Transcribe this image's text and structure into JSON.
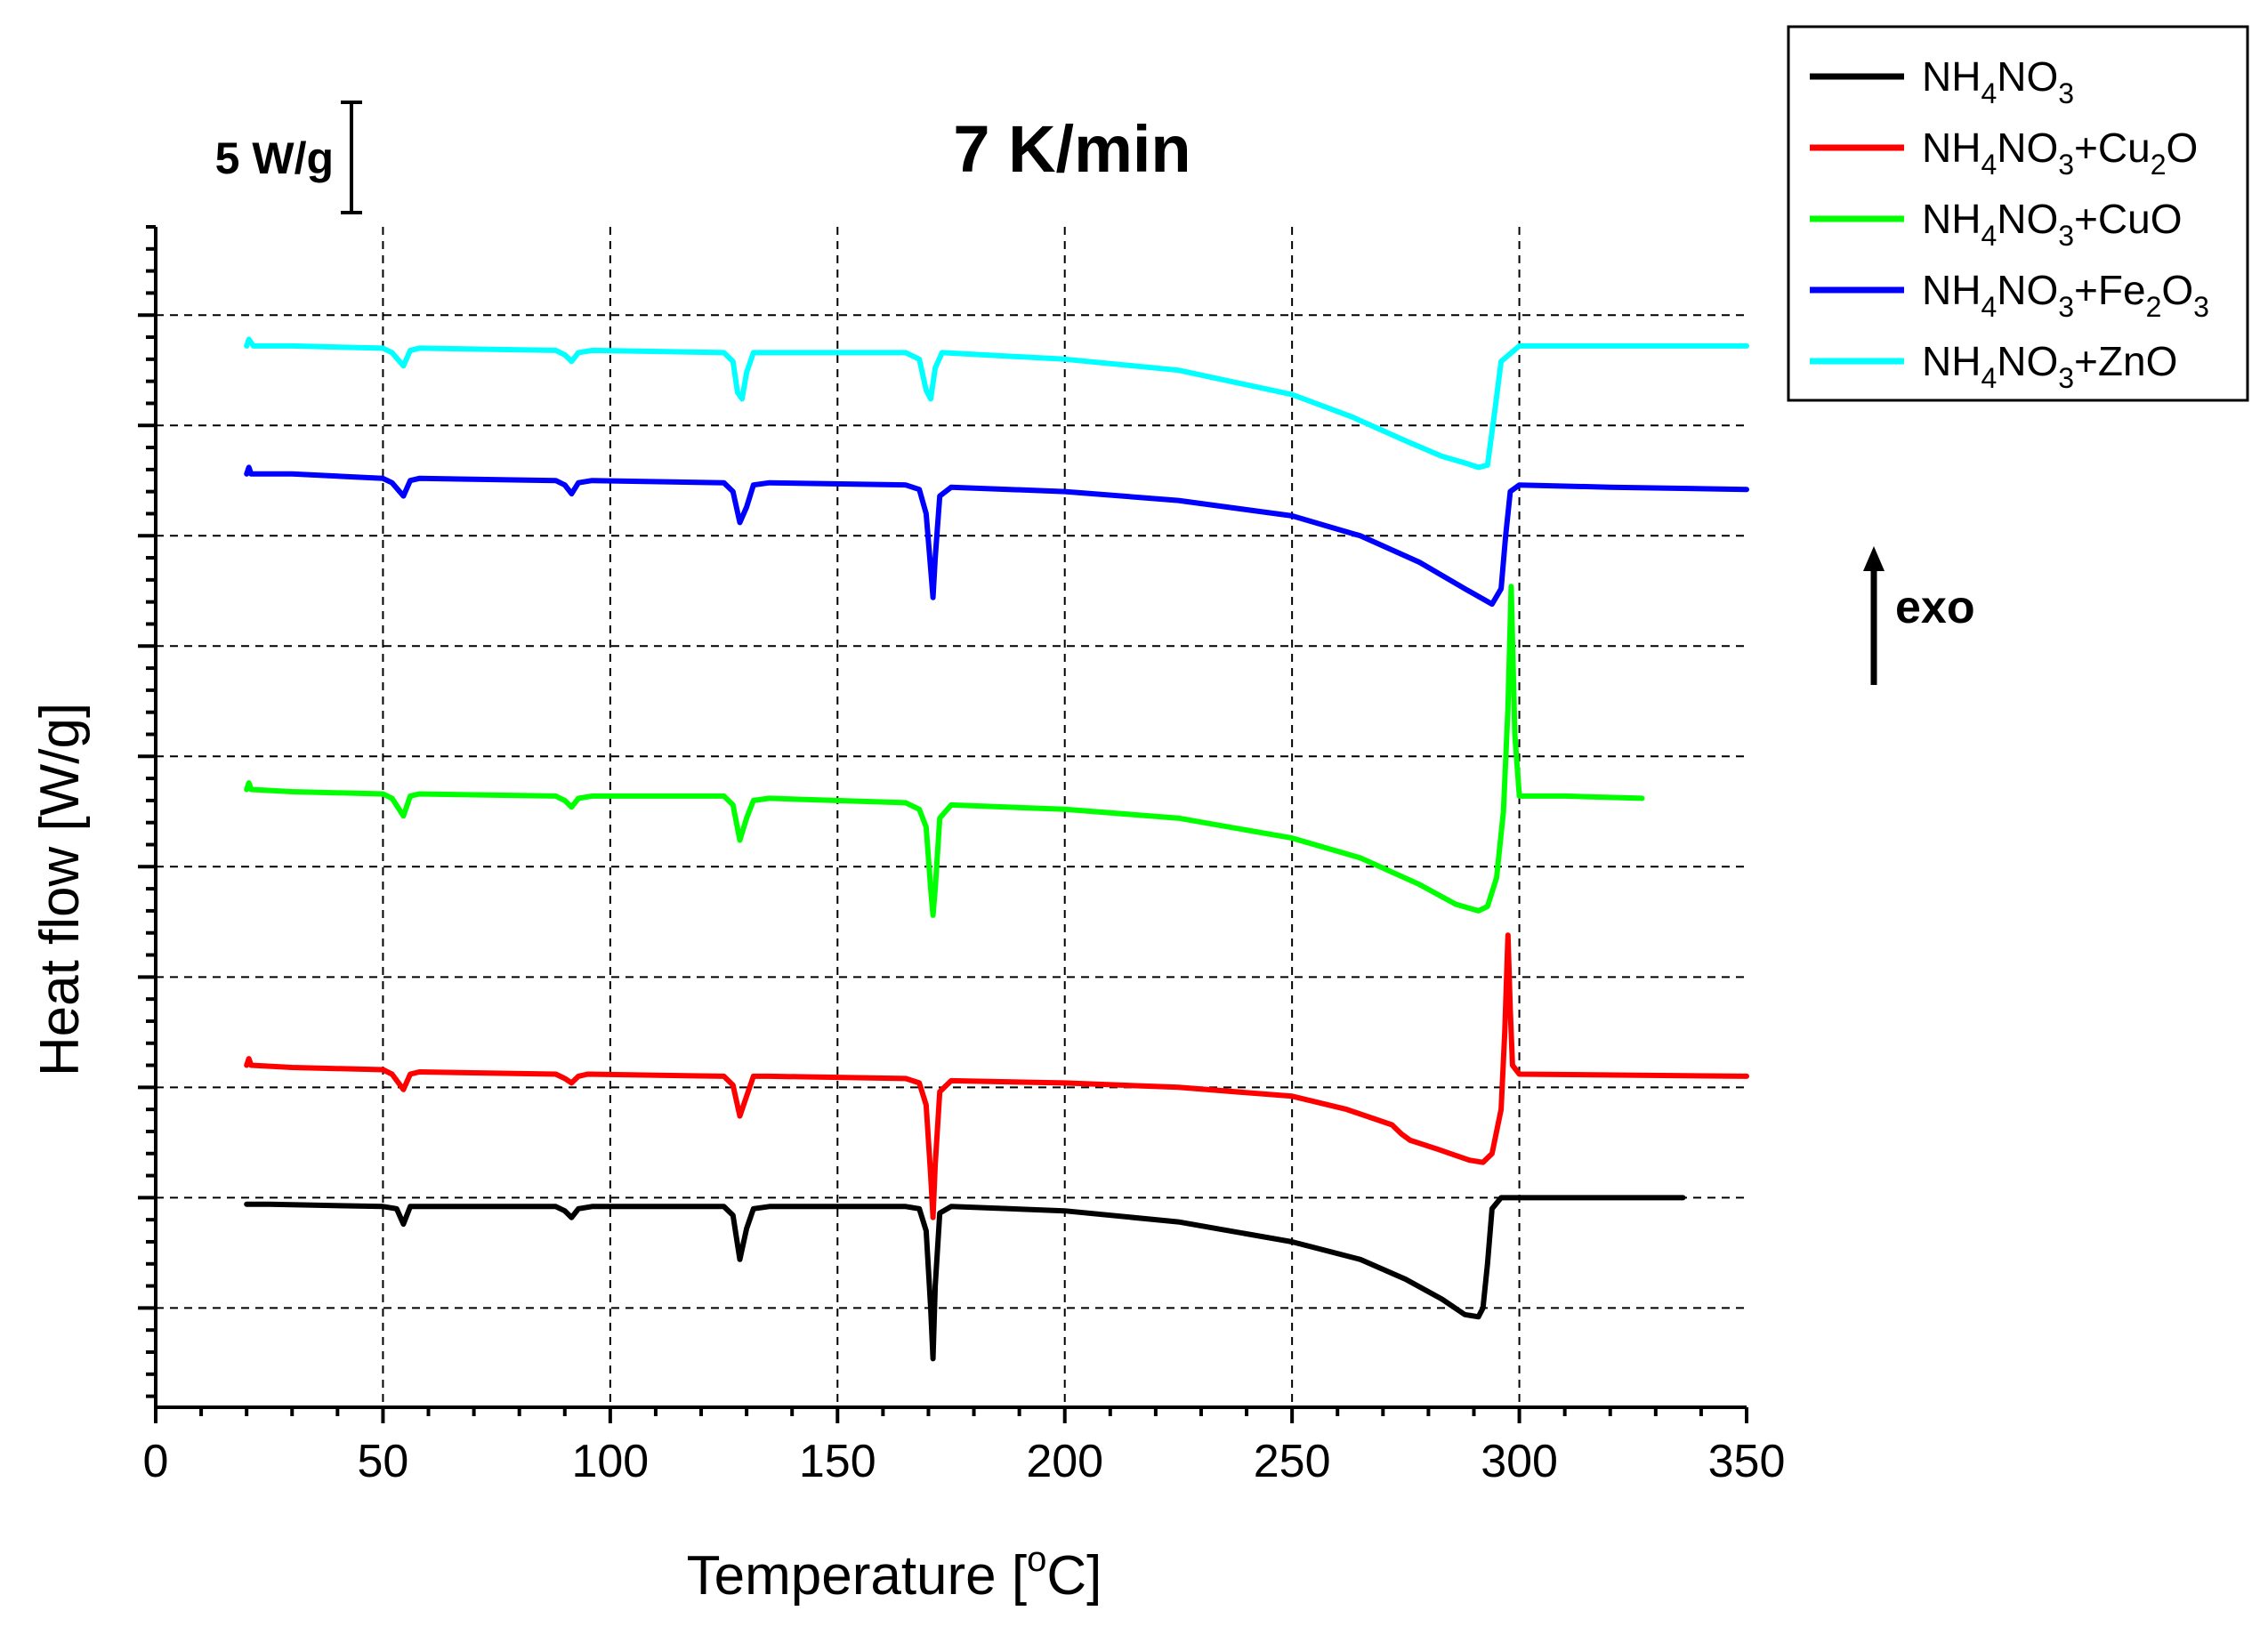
{
  "chart_data": {
    "type": "line",
    "title": "7 K/min",
    "xlabel": "Temperature [",
    "xlabel_sup": "o",
    "xlabel_end": "C]",
    "ylabel": "Heat flow [W/g]",
    "xlim": [
      0,
      350
    ],
    "x_ticks": [
      "0",
      "50",
      "100",
      "150",
      "200",
      "250",
      "300",
      "350"
    ],
    "x_tick_values": [
      0,
      50,
      100,
      150,
      200,
      250,
      300,
      350
    ],
    "ylim": [
      -9.5,
      44
    ],
    "y_major_values": [
      -5,
      0,
      5,
      10,
      15,
      20,
      25,
      30,
      35,
      40
    ],
    "y_minor_step": 1,
    "scale_bar": {
      "label": "5 W/g",
      "value": 5
    },
    "exo_label": "exo",
    "grid": true,
    "legend_position": "top-right",
    "series": [
      {
        "name": "NH4NO3",
        "label": {
          "base": "NH",
          "sub1": "4",
          "mid": "NO",
          "sub2": "3",
          "tail": ""
        },
        "color": "#000000",
        "points": [
          [
            20,
            -0.3
          ],
          [
            25,
            -0.3
          ],
          [
            50,
            -0.4
          ],
          [
            53,
            -0.5
          ],
          [
            54.5,
            -1.2
          ],
          [
            56,
            -0.4
          ],
          [
            60,
            -0.4
          ],
          [
            88,
            -0.4
          ],
          [
            90,
            -0.6
          ],
          [
            91.5,
            -0.9
          ],
          [
            93,
            -0.5
          ],
          [
            96,
            -0.4
          ],
          [
            125,
            -0.4
          ],
          [
            127,
            -0.8
          ],
          [
            128.5,
            -2.8
          ],
          [
            130,
            -1.4
          ],
          [
            131.5,
            -0.5
          ],
          [
            135,
            -0.4
          ],
          [
            165,
            -0.4
          ],
          [
            168,
            -0.5
          ],
          [
            169.5,
            -1.5
          ],
          [
            170.5,
            -5
          ],
          [
            171,
            -7.3
          ],
          [
            171.5,
            -4
          ],
          [
            172.5,
            -0.7
          ],
          [
            175,
            -0.4
          ],
          [
            200,
            -0.6
          ],
          [
            225,
            -1.1
          ],
          [
            250,
            -2.0
          ],
          [
            265,
            -2.8
          ],
          [
            275,
            -3.7
          ],
          [
            283,
            -4.6
          ],
          [
            288,
            -5.3
          ],
          [
            291,
            -5.4
          ],
          [
            292,
            -5.0
          ],
          [
            293,
            -3
          ],
          [
            294,
            -0.5
          ],
          [
            296,
            0
          ],
          [
            300,
            0
          ],
          [
            336,
            0
          ]
        ]
      },
      {
        "name": "NH4NO3+Cu2O",
        "label": {
          "base": "NH",
          "sub1": "4",
          "mid": "NO",
          "sub2": "3",
          "tail": "+Cu",
          "sub3": "2",
          "tail2": "O"
        },
        "color": "#ff0000",
        "points": [
          [
            20,
            6.0
          ],
          [
            20.5,
            6.3
          ],
          [
            21,
            6.0
          ],
          [
            30,
            5.9
          ],
          [
            50,
            5.8
          ],
          [
            52,
            5.6
          ],
          [
            54.5,
            4.9
          ],
          [
            56,
            5.6
          ],
          [
            58,
            5.7
          ],
          [
            88,
            5.6
          ],
          [
            90,
            5.4
          ],
          [
            91.5,
            5.2
          ],
          [
            93,
            5.5
          ],
          [
            95,
            5.6
          ],
          [
            125,
            5.5
          ],
          [
            127,
            5.1
          ],
          [
            128.5,
            3.7
          ],
          [
            130,
            4.6
          ],
          [
            131.5,
            5.5
          ],
          [
            135,
            5.5
          ],
          [
            165,
            5.4
          ],
          [
            168,
            5.2
          ],
          [
            169.5,
            4.2
          ],
          [
            170.5,
            1.0
          ],
          [
            171,
            -0.9
          ],
          [
            171.5,
            1.5
          ],
          [
            172.5,
            4.8
          ],
          [
            175,
            5.3
          ],
          [
            200,
            5.2
          ],
          [
            225,
            5.0
          ],
          [
            250,
            4.6
          ],
          [
            262,
            4.0
          ],
          [
            272,
            3.3
          ],
          [
            274,
            2.9
          ],
          [
            276,
            2.6
          ],
          [
            282,
            2.2
          ],
          [
            289,
            1.7
          ],
          [
            292,
            1.6
          ],
          [
            294,
            2.0
          ],
          [
            296,
            4.0
          ],
          [
            296.8,
            7.5
          ],
          [
            297.5,
            11.9
          ],
          [
            298,
            8.5
          ],
          [
            298.5,
            6.0
          ],
          [
            300,
            5.6
          ],
          [
            350,
            5.5
          ]
        ]
      },
      {
        "name": "NH4NO3+CuO",
        "label": {
          "base": "NH",
          "sub1": "4",
          "mid": "NO",
          "sub2": "3",
          "tail": "+CuO"
        },
        "color": "#00ff00",
        "points": [
          [
            20,
            18.5
          ],
          [
            20.5,
            18.8
          ],
          [
            21,
            18.5
          ],
          [
            30,
            18.4
          ],
          [
            50,
            18.3
          ],
          [
            52,
            18.1
          ],
          [
            54.5,
            17.3
          ],
          [
            56,
            18.2
          ],
          [
            58,
            18.3
          ],
          [
            88,
            18.2
          ],
          [
            90,
            18.0
          ],
          [
            91.5,
            17.7
          ],
          [
            93,
            18.1
          ],
          [
            96,
            18.2
          ],
          [
            125,
            18.2
          ],
          [
            127,
            17.8
          ],
          [
            128.5,
            16.2
          ],
          [
            130,
            17.2
          ],
          [
            131.5,
            18.0
          ],
          [
            135,
            18.1
          ],
          [
            165,
            17.9
          ],
          [
            168,
            17.6
          ],
          [
            169.5,
            16.8
          ],
          [
            170.5,
            14.0
          ],
          [
            171,
            12.8
          ],
          [
            171.5,
            14.0
          ],
          [
            172.5,
            17.2
          ],
          [
            175,
            17.8
          ],
          [
            200,
            17.6
          ],
          [
            225,
            17.2
          ],
          [
            250,
            16.3
          ],
          [
            265,
            15.4
          ],
          [
            278,
            14.2
          ],
          [
            286,
            13.3
          ],
          [
            291,
            13.0
          ],
          [
            293,
            13.2
          ],
          [
            295,
            14.5
          ],
          [
            296.5,
            17.5
          ],
          [
            297.5,
            22.2
          ],
          [
            298.2,
            27.7
          ],
          [
            299,
            21.0
          ],
          [
            300,
            18.2
          ],
          [
            310,
            18.2
          ],
          [
            327,
            18.1
          ]
        ]
      },
      {
        "name": "NH4NO3+Fe2O3",
        "label": {
          "base": "NH",
          "sub1": "4",
          "mid": "NO",
          "sub2": "3",
          "tail": "+Fe",
          "sub3": "2",
          "tail2": "O",
          "sub4": "3"
        },
        "color": "#0000ff",
        "points": [
          [
            20,
            32.8
          ],
          [
            20.5,
            33.1
          ],
          [
            21,
            32.8
          ],
          [
            30,
            32.8
          ],
          [
            50,
            32.6
          ],
          [
            52,
            32.4
          ],
          [
            54.5,
            31.8
          ],
          [
            56,
            32.5
          ],
          [
            58,
            32.6
          ],
          [
            88,
            32.5
          ],
          [
            90,
            32.3
          ],
          [
            91.5,
            31.9
          ],
          [
            93,
            32.4
          ],
          [
            96,
            32.5
          ],
          [
            125,
            32.4
          ],
          [
            127,
            32.0
          ],
          [
            128.5,
            30.6
          ],
          [
            130,
            31.3
          ],
          [
            131.5,
            32.3
          ],
          [
            135,
            32.4
          ],
          [
            165,
            32.3
          ],
          [
            168,
            32.1
          ],
          [
            169.5,
            31.0
          ],
          [
            170.5,
            28.5
          ],
          [
            171,
            27.2
          ],
          [
            171.5,
            29.0
          ],
          [
            172.5,
            31.8
          ],
          [
            175,
            32.2
          ],
          [
            200,
            32.0
          ],
          [
            225,
            31.6
          ],
          [
            250,
            30.9
          ],
          [
            265,
            30.0
          ],
          [
            278,
            28.8
          ],
          [
            288,
            27.6
          ],
          [
            294,
            26.9
          ],
          [
            296,
            27.6
          ],
          [
            297,
            30.0
          ],
          [
            298,
            32.0
          ],
          [
            300,
            32.3
          ],
          [
            320,
            32.2
          ],
          [
            350,
            32.1
          ]
        ]
      },
      {
        "name": "NH4NO3+ZnO",
        "label": {
          "base": "NH",
          "sub1": "4",
          "mid": "NO",
          "sub2": "3",
          "tail": "+ZnO"
        },
        "color": "#00ffff",
        "points": [
          [
            20,
            38.6
          ],
          [
            20.5,
            38.9
          ],
          [
            21.5,
            38.6
          ],
          [
            30,
            38.6
          ],
          [
            50,
            38.5
          ],
          [
            52,
            38.3
          ],
          [
            54.5,
            37.7
          ],
          [
            56,
            38.4
          ],
          [
            58,
            38.5
          ],
          [
            88,
            38.4
          ],
          [
            90,
            38.2
          ],
          [
            91.5,
            37.9
          ],
          [
            93,
            38.3
          ],
          [
            96,
            38.4
          ],
          [
            125,
            38.3
          ],
          [
            127,
            37.9
          ],
          [
            128,
            36.5
          ],
          [
            129,
            36.2
          ],
          [
            130,
            37.4
          ],
          [
            131.5,
            38.3
          ],
          [
            135,
            38.3
          ],
          [
            165,
            38.3
          ],
          [
            168,
            38.0
          ],
          [
            169.5,
            36.6
          ],
          [
            170.5,
            36.2
          ],
          [
            171.5,
            37.6
          ],
          [
            173,
            38.3
          ],
          [
            200,
            38.0
          ],
          [
            225,
            37.5
          ],
          [
            250,
            36.4
          ],
          [
            263,
            35.4
          ],
          [
            275,
            34.3
          ],
          [
            283,
            33.6
          ],
          [
            288,
            33.3
          ],
          [
            291,
            33.1
          ],
          [
            293,
            33.2
          ],
          [
            294.5,
            35.5
          ],
          [
            296,
            37.9
          ],
          [
            300,
            38.6
          ],
          [
            320,
            38.6
          ],
          [
            350,
            38.6
          ]
        ]
      }
    ]
  }
}
